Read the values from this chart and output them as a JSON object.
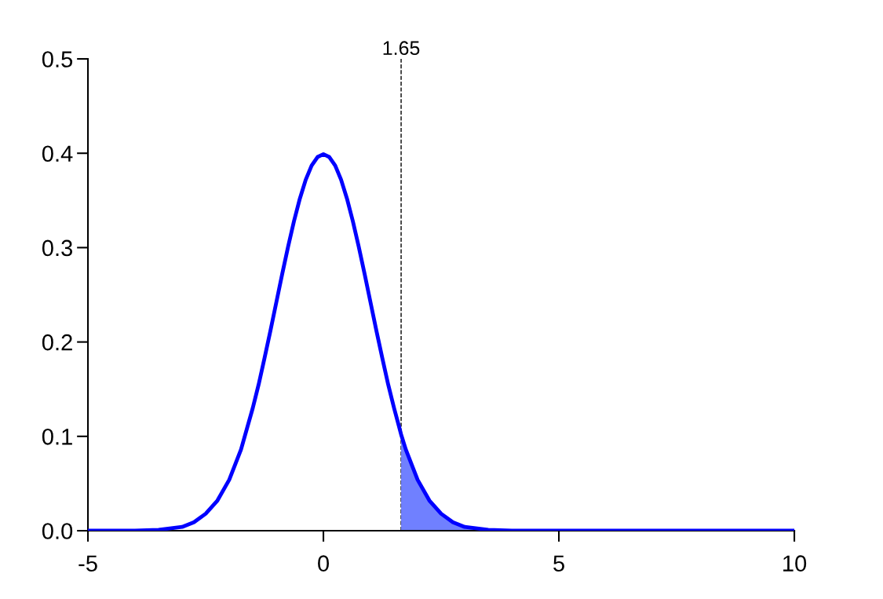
{
  "chart_data": {
    "type": "line",
    "series": [
      {
        "type": "area",
        "color": "#7080ff",
        "x": [
          1.65,
          1.75,
          2,
          2.25,
          2.5,
          2.75,
          3,
          3.5,
          4
        ],
        "values": [
          0.102,
          0.086,
          0.054,
          0.032,
          0.018,
          0.009,
          0.004,
          0.001,
          0.0
        ]
      },
      {
        "color": "#0000ff",
        "x": [
          -5,
          -4,
          -3.5,
          -3,
          -2.75,
          -2.5,
          -2.25,
          -2,
          -1.75,
          -1.5,
          -1.375,
          -1.25,
          -1.125,
          -1,
          -0.875,
          -0.75,
          -0.625,
          -0.5,
          -0.375,
          -0.25,
          -0.125,
          0,
          0.125,
          0.25,
          0.375,
          0.5,
          0.625,
          0.75,
          0.875,
          1,
          1.125,
          1.25,
          1.375,
          1.5,
          1.65,
          1.75,
          2,
          2.25,
          2.5,
          2.75,
          3,
          3.5,
          4,
          5,
          10
        ],
        "values": [
          0.0,
          0.0,
          0.001,
          0.004,
          0.009,
          0.018,
          0.032,
          0.054,
          0.086,
          0.13,
          0.155,
          0.183,
          0.212,
          0.242,
          0.272,
          0.301,
          0.328,
          0.352,
          0.372,
          0.387,
          0.396,
          0.399,
          0.396,
          0.387,
          0.372,
          0.352,
          0.328,
          0.301,
          0.272,
          0.242,
          0.212,
          0.183,
          0.155,
          0.13,
          0.102,
          0.086,
          0.054,
          0.032,
          0.018,
          0.009,
          0.004,
          0.001,
          0.0,
          0.0,
          0.0
        ]
      }
    ],
    "xlim": [
      -5,
      10
    ],
    "xticks": [
      -5,
      0,
      5,
      10
    ],
    "ylim": [
      0,
      0.5
    ],
    "yticks": [
      {
        "value": 0,
        "label": "0.0"
      },
      {
        "value": 0.1,
        "label": "0.1"
      },
      {
        "value": 0.2,
        "label": "0.2"
      },
      {
        "value": 0.3,
        "label": "0.3"
      },
      {
        "value": 0.4,
        "label": "0.4"
      },
      {
        "value": 0.5,
        "label": "0.5"
      }
    ],
    "ref_lines": [
      {
        "axis": "x",
        "value": 1.65,
        "label": "1.65",
        "color": "#000000",
        "line_style": "dashed"
      }
    ],
    "grid": false,
    "legend": false,
    "marker": "none",
    "line_style": "solid"
  }
}
